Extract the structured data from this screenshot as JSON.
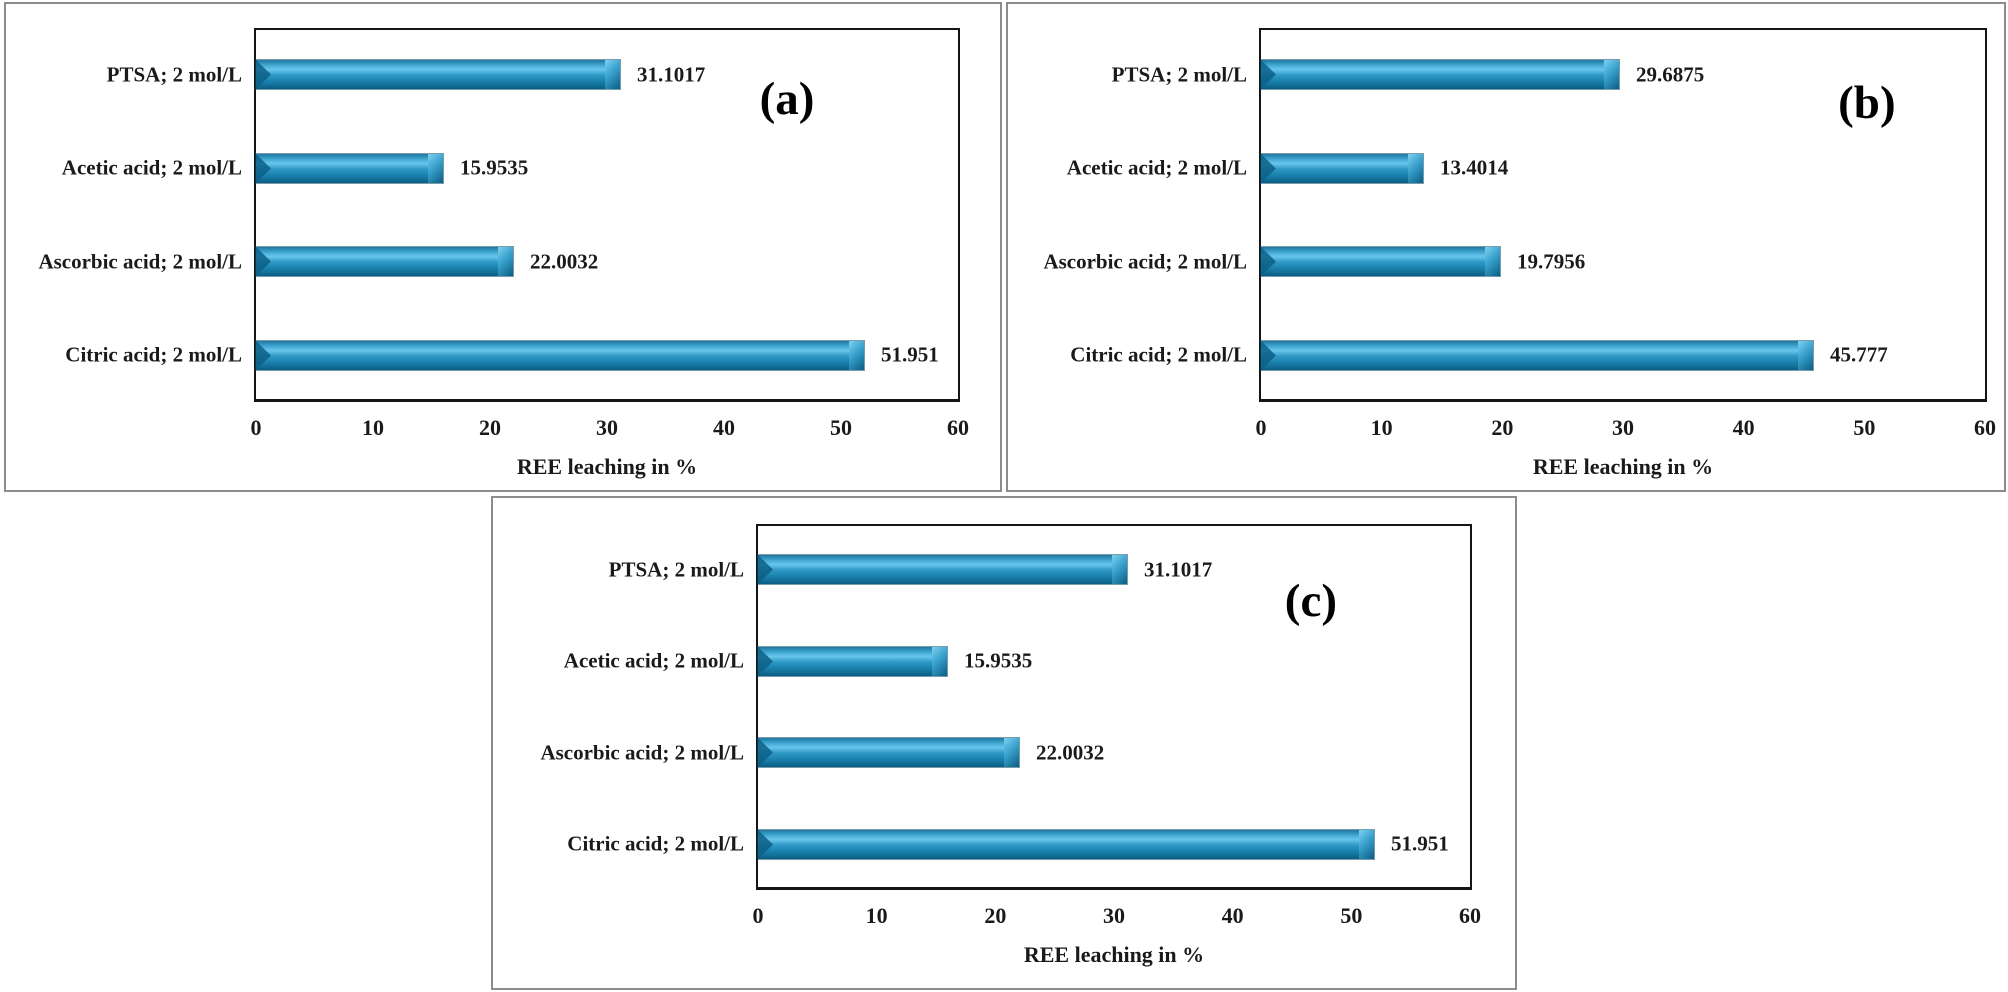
{
  "figure": {
    "description_visible_text_only": true,
    "axis_label": "REE leaching in %"
  },
  "colors": {
    "bar_main": "#2f98c5",
    "bar_highlight": "#68c6eb",
    "bar_dark": "#0b5b80",
    "plot_border": "#151515",
    "panel_border": "#8c8c8c",
    "text": "#1a1a1a",
    "background": "#ffffff"
  },
  "chart_data": [
    {
      "type": "bar",
      "orientation": "horizontal",
      "panel_label": "(a)",
      "categories": [
        "PTSA; 2 mol/L",
        "Acetic acid; 2 mol/L",
        "Ascorbic acid; 2 mol/L",
        "Citric acid; 2 mol/L"
      ],
      "values": [
        31.1017,
        15.9535,
        22.0032,
        51.951
      ],
      "value_labels": [
        "31.1017",
        "15.9535",
        "22.0032",
        "51.951"
      ],
      "xlabel": "REE leaching in %",
      "xlim": [
        0,
        60
      ],
      "xticks": [
        "0",
        "10",
        "20",
        "30",
        "40",
        "50",
        "60"
      ],
      "grid": false,
      "legend": "none"
    },
    {
      "type": "bar",
      "orientation": "horizontal",
      "panel_label": "(b)",
      "categories": [
        "PTSA; 2 mol/L",
        "Acetic acid; 2 mol/L",
        "Ascorbic acid; 2 mol/L",
        "Citric acid; 2 mol/L"
      ],
      "values": [
        29.6875,
        13.4014,
        19.7956,
        45.777
      ],
      "value_labels": [
        "29.6875",
        "13.4014",
        "19.7956",
        "45.777"
      ],
      "xlabel": "REE leaching in %",
      "xlim": [
        0,
        60
      ],
      "xticks": [
        "0",
        "10",
        "20",
        "30",
        "40",
        "50",
        "60"
      ],
      "grid": false,
      "legend": "none"
    },
    {
      "type": "bar",
      "orientation": "horizontal",
      "panel_label": "(c)",
      "categories": [
        "PTSA; 2 mol/L",
        "Acetic acid; 2 mol/L",
        "Ascorbic acid; 2 mol/L",
        "Citric acid; 2 mol/L"
      ],
      "values": [
        31.1017,
        15.9535,
        22.0032,
        51.951
      ],
      "value_labels": [
        "31.1017",
        "15.9535",
        "22.0032",
        "51.951"
      ],
      "xlabel": "REE leaching in %",
      "xlim": [
        0,
        60
      ],
      "xticks": [
        "0",
        "10",
        "20",
        "30",
        "40",
        "50",
        "60"
      ],
      "grid": false,
      "legend": "none"
    }
  ]
}
